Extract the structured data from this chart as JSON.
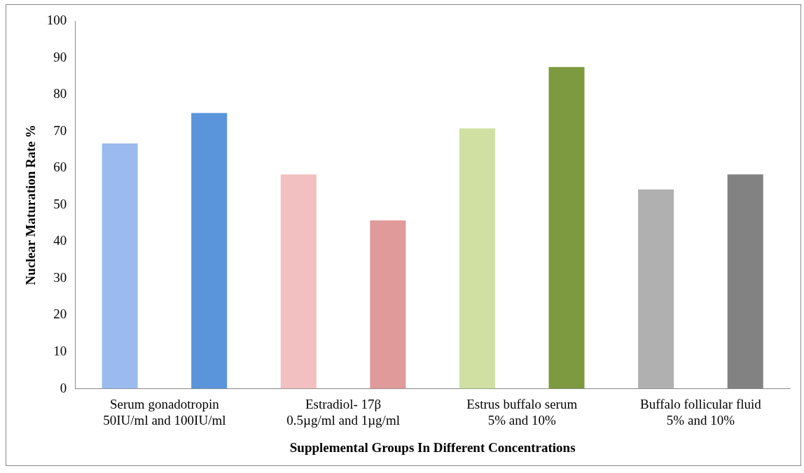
{
  "chart_data": {
    "type": "bar",
    "categories": [
      "Serum gonadotropin\n50IU/ml and 100IU/ml",
      "Estradiol- 17β\n0.5µg/ml and 1µg/ml",
      "Estrus buffalo serum\n5% and 10%",
      "Buffalo follicular fluid\n5% and 10%"
    ],
    "series": [
      {
        "values": [
          66.7,
          58.3,
          70.8,
          54.2
        ],
        "colors": [
          "#9bbbee",
          "#f2c0c0",
          "#cfe0a2",
          "#b0b0b0"
        ]
      },
      {
        "values": [
          75,
          45.8,
          87.5,
          58.3
        ],
        "colors": [
          "#5a95dc",
          "#e09a9a",
          "#7e9a40",
          "#828282"
        ]
      }
    ],
    "xlabel": "Supplemental Groups In Different Concentrations",
    "ylabel": "Nuclear Maturation Rate %",
    "ylim": [
      0,
      100
    ],
    "yticks": [
      0,
      10,
      20,
      30,
      40,
      50,
      60,
      70,
      80,
      90,
      100
    ],
    "grid": false,
    "legend": false
  }
}
